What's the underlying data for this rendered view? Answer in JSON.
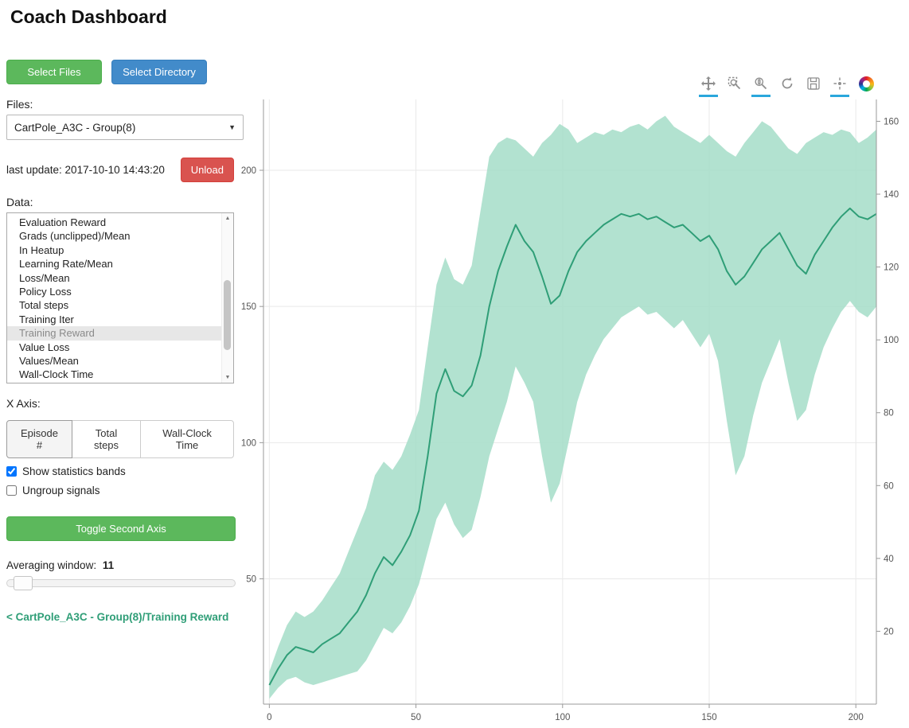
{
  "header": {
    "title": "Coach Dashboard"
  },
  "sidebar": {
    "select_files_label": "Select Files",
    "select_directory_label": "Select Directory",
    "files_label": "Files:",
    "files_select_value": "CartPole_A3C - Group(8)",
    "last_update_text": "last update: 2017-10-10 14:43:20",
    "unload_label": "Unload",
    "data_label": "Data:",
    "data_list": {
      "items": [
        "Evaluation Reward",
        "Grads (unclipped)/Mean",
        "In Heatup",
        "Learning Rate/Mean",
        "Loss/Mean",
        "Policy Loss",
        "Total steps",
        "Training Iter",
        "Training Reward",
        "Value Loss",
        "Values/Mean",
        "Wall-Clock Time"
      ],
      "selected": "Training Reward"
    },
    "x_axis_label": "X Axis:",
    "x_axis_options": [
      "Episode #",
      "Total steps",
      "Wall-Clock Time"
    ],
    "x_axis_selected": "Episode #",
    "checkboxes": [
      {
        "label": "Show statistics bands",
        "checked": true
      },
      {
        "label": "Ungroup signals",
        "checked": false
      }
    ],
    "toggle_second_axis_label": "Toggle Second Axis",
    "averaging_window_label": "Averaging window:",
    "averaging_window_value": "11",
    "breadcrumb": "< CartPole_A3C - Group(8)/Training Reward"
  },
  "toolbar": {
    "tools": [
      "pan",
      "box-zoom",
      "wheel-zoom",
      "reset",
      "save",
      "hover",
      "bokeh-logo"
    ],
    "active_tools": [
      "pan",
      "wheel-zoom",
      "hover"
    ],
    "active_color": "#2aa7dc"
  },
  "chart_data": {
    "type": "line",
    "title": "",
    "series_name": "CartPole_A3C - Group(8)/Training Reward",
    "line_color": "#2f9e77",
    "band_color": "#a5ddc8",
    "xlim": [
      -2,
      207
    ],
    "ylim_left": [
      4,
      226
    ],
    "ylim_right": [
      0,
      166
    ],
    "x_ticks": [
      0,
      50,
      100,
      150,
      200
    ],
    "y_ticks_left": [
      50,
      100,
      150,
      200
    ],
    "y_ticks_right": [
      20,
      40,
      60,
      80,
      100,
      120,
      140,
      160
    ],
    "x": [
      0,
      3,
      6,
      9,
      12,
      15,
      18,
      21,
      24,
      27,
      30,
      33,
      36,
      39,
      42,
      45,
      48,
      51,
      54,
      57,
      60,
      63,
      66,
      69,
      72,
      75,
      78,
      81,
      84,
      87,
      90,
      93,
      96,
      99,
      102,
      105,
      108,
      111,
      114,
      117,
      120,
      123,
      126,
      129,
      132,
      135,
      138,
      141,
      144,
      147,
      150,
      153,
      156,
      159,
      162,
      165,
      168,
      171,
      174,
      177,
      180,
      183,
      186,
      189,
      192,
      195,
      198,
      201,
      204,
      207
    ],
    "mean": [
      11,
      17,
      22,
      25,
      24,
      23,
      26,
      28,
      30,
      34,
      38,
      44,
      52,
      58,
      55,
      60,
      66,
      75,
      95,
      118,
      127,
      119,
      117,
      121,
      132,
      150,
      163,
      172,
      180,
      174,
      170,
      161,
      151,
      154,
      163,
      170,
      174,
      177,
      180,
      182,
      184,
      183,
      184,
      182,
      183,
      181,
      179,
      180,
      177,
      174,
      176,
      171,
      163,
      158,
      161,
      166,
      171,
      174,
      177,
      171,
      165,
      162,
      169,
      174,
      179,
      183,
      186,
      183,
      182,
      184
    ],
    "upper": [
      16,
      25,
      33,
      38,
      36,
      38,
      42,
      47,
      52,
      60,
      68,
      76,
      88,
      93,
      90,
      95,
      103,
      112,
      135,
      158,
      168,
      160,
      158,
      165,
      185,
      205,
      210,
      212,
      211,
      208,
      205,
      210,
      213,
      217,
      215,
      210,
      212,
      214,
      213,
      215,
      214,
      216,
      217,
      215,
      218,
      220,
      216,
      214,
      212,
      210,
      213,
      210,
      207,
      205,
      210,
      214,
      218,
      216,
      212,
      208,
      206,
      210,
      212,
      214,
      213,
      215,
      214,
      210,
      212,
      215
    ],
    "lower": [
      6,
      10,
      13,
      14,
      12,
      11,
      12,
      13,
      14,
      15,
      16,
      20,
      26,
      32,
      30,
      34,
      40,
      48,
      60,
      72,
      78,
      70,
      65,
      68,
      80,
      95,
      105,
      115,
      128,
      122,
      115,
      95,
      78,
      85,
      100,
      115,
      125,
      132,
      138,
      142,
      146,
      148,
      150,
      147,
      148,
      145,
      142,
      145,
      140,
      135,
      140,
      130,
      108,
      88,
      95,
      110,
      122,
      130,
      138,
      122,
      108,
      112,
      125,
      135,
      142,
      148,
      152,
      148,
      146,
      150
    ]
  }
}
